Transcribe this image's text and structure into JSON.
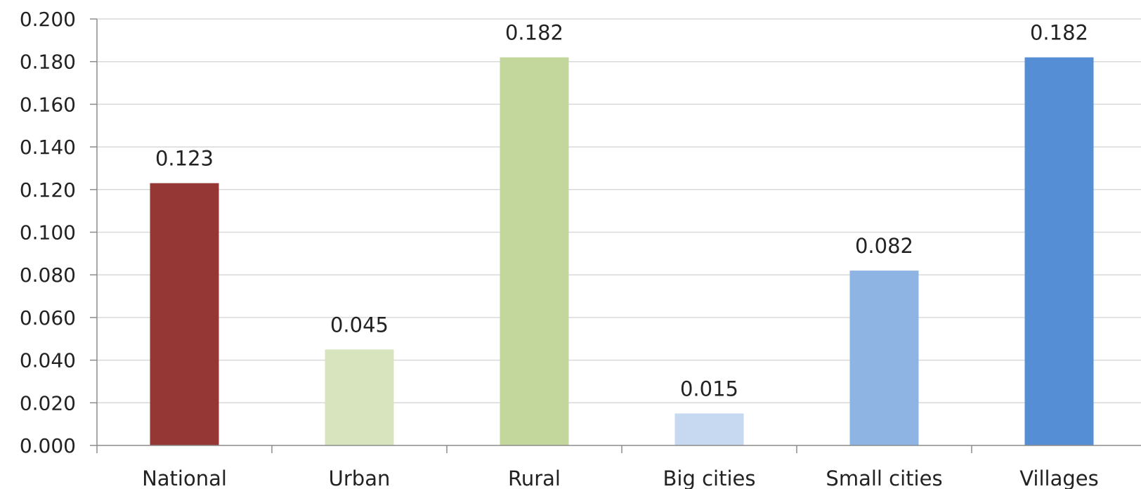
{
  "chart_data": {
    "type": "bar",
    "title": "",
    "xlabel": "",
    "ylabel": "",
    "categories": [
      "National",
      "Urban",
      "Rural",
      "Big cities",
      "Small cities",
      "Villages"
    ],
    "values": [
      0.123,
      0.045,
      0.182,
      0.015,
      0.082,
      0.182
    ],
    "data_labels": [
      "0.123",
      "0.045",
      "0.182",
      "0.015",
      "0.082",
      "0.182"
    ],
    "colors": [
      "#953735",
      "#d7e4bd",
      "#c3d69b",
      "#c6d9f1",
      "#8eb4e3",
      "#558ed5"
    ],
    "ylim": [
      0,
      0.2
    ],
    "yticks": [
      0,
      0.02,
      0.04,
      0.06,
      0.08,
      0.1,
      0.12,
      0.14,
      0.16,
      0.18,
      0.2
    ],
    "ytick_labels": [
      "0.000",
      "0.020",
      "0.040",
      "0.060",
      "0.080",
      "0.100",
      "0.120",
      "0.140",
      "0.160",
      "0.180",
      "0.200"
    ],
    "grid": true,
    "legend": "none"
  }
}
